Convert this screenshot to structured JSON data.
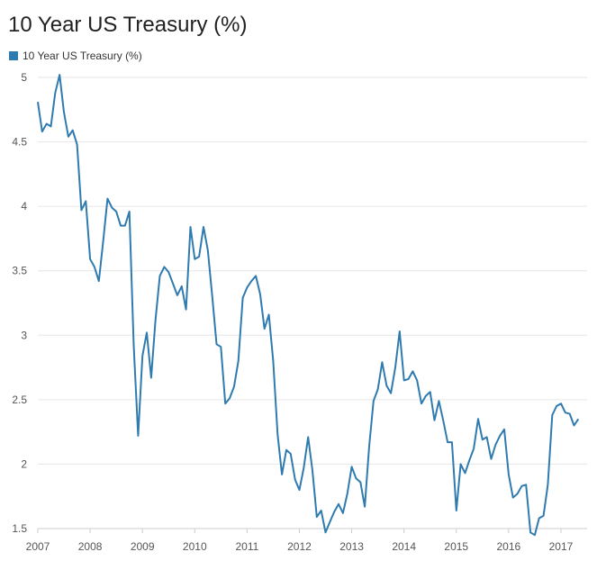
{
  "chart_data": {
    "type": "line",
    "title": "10 Year US Treasury (%)",
    "legend": {
      "placement": "top-left",
      "entries": [
        "10 Year US Treasury (%)"
      ]
    },
    "xlabel": "",
    "ylabel": "",
    "xlim": [
      2007.0,
      2017.5
    ],
    "ylim": [
      1.45,
      5.0
    ],
    "grid": true,
    "x_ticks": [
      "2007",
      "2008",
      "2009",
      "2010",
      "2011",
      "2012",
      "2013",
      "2014",
      "2015",
      "2016",
      "2017"
    ],
    "y_ticks": [
      "1.5",
      "2",
      "2.5",
      "3",
      "3.5",
      "4",
      "4.5",
      "5"
    ],
    "colors": {
      "series": "#2f7bb0",
      "grid": "#e6e6e6",
      "axis": "#cccccc"
    },
    "series": [
      {
        "name": "10 Year US Treasury (%)",
        "x": [
          2007.0,
          2007.083,
          2007.167,
          2007.25,
          2007.333,
          2007.417,
          2007.5,
          2007.583,
          2007.667,
          2007.75,
          2007.833,
          2007.917,
          2008.0,
          2008.083,
          2008.167,
          2008.25,
          2008.333,
          2008.417,
          2008.5,
          2008.583,
          2008.667,
          2008.75,
          2008.833,
          2008.917,
          2009.0,
          2009.083,
          2009.167,
          2009.25,
          2009.333,
          2009.417,
          2009.5,
          2009.583,
          2009.667,
          2009.75,
          2009.833,
          2009.917,
          2010.0,
          2010.083,
          2010.167,
          2010.25,
          2010.333,
          2010.417,
          2010.5,
          2010.583,
          2010.667,
          2010.75,
          2010.833,
          2010.917,
          2011.0,
          2011.083,
          2011.167,
          2011.25,
          2011.333,
          2011.417,
          2011.5,
          2011.583,
          2011.667,
          2011.75,
          2011.833,
          2011.917,
          2012.0,
          2012.083,
          2012.167,
          2012.25,
          2012.333,
          2012.417,
          2012.5,
          2012.583,
          2012.667,
          2012.75,
          2012.833,
          2012.917,
          2013.0,
          2013.083,
          2013.167,
          2013.25,
          2013.333,
          2013.417,
          2013.5,
          2013.583,
          2013.667,
          2013.75,
          2013.833,
          2013.917,
          2014.0,
          2014.083,
          2014.167,
          2014.25,
          2014.333,
          2014.417,
          2014.5,
          2014.583,
          2014.667,
          2014.75,
          2014.833,
          2014.917,
          2015.0,
          2015.083,
          2015.167,
          2015.25,
          2015.333,
          2015.417,
          2015.5,
          2015.583,
          2015.667,
          2015.75,
          2015.833,
          2015.917,
          2016.0,
          2016.083,
          2016.167,
          2016.25,
          2016.333,
          2016.417,
          2016.5,
          2016.583,
          2016.667,
          2016.75,
          2016.833,
          2016.917,
          2017.0,
          2017.083,
          2017.167,
          2017.25,
          2017.333
        ],
        "values": [
          4.81,
          4.58,
          4.64,
          4.62,
          4.88,
          5.02,
          4.73,
          4.54,
          4.59,
          4.48,
          3.97,
          4.04,
          3.59,
          3.53,
          3.42,
          3.73,
          4.06,
          3.99,
          3.96,
          3.85,
          3.85,
          3.96,
          2.92,
          2.22,
          2.84,
          3.02,
          2.67,
          3.12,
          3.46,
          3.53,
          3.49,
          3.4,
          3.31,
          3.38,
          3.2,
          3.84,
          3.59,
          3.61,
          3.84,
          3.66,
          3.31,
          2.93,
          2.91,
          2.47,
          2.51,
          2.6,
          2.8,
          3.29,
          3.37,
          3.42,
          3.46,
          3.32,
          3.05,
          3.16,
          2.8,
          2.23,
          1.92,
          2.11,
          2.08,
          1.88,
          1.8,
          1.97,
          2.21,
          1.95,
          1.59,
          1.64,
          1.47,
          1.55,
          1.63,
          1.69,
          1.62,
          1.77,
          1.98,
          1.89,
          1.86,
          1.67,
          2.13,
          2.49,
          2.58,
          2.79,
          2.61,
          2.55,
          2.75,
          3.03,
          2.65,
          2.66,
          2.72,
          2.65,
          2.47,
          2.53,
          2.56,
          2.34,
          2.49,
          2.34,
          2.17,
          2.17,
          1.64,
          2.0,
          1.93,
          2.03,
          2.12,
          2.35,
          2.19,
          2.21,
          2.04,
          2.15,
          2.22,
          2.27,
          1.92,
          1.74,
          1.77,
          1.83,
          1.84,
          1.47,
          1.45,
          1.58,
          1.6,
          1.84,
          2.38,
          2.45,
          2.47,
          2.4,
          2.39,
          2.3,
          2.35
        ]
      }
    ]
  }
}
